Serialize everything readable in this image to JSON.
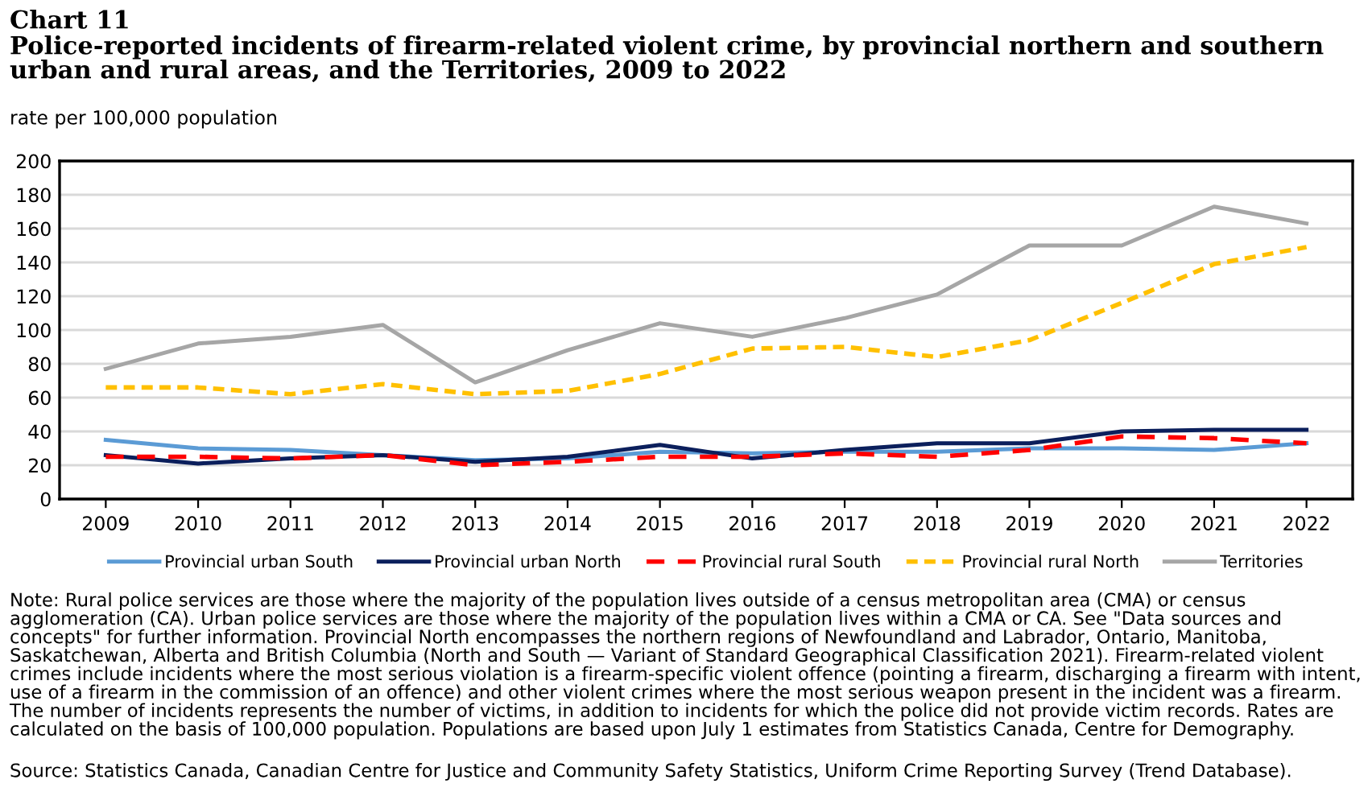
{
  "chart_data": {
    "type": "line",
    "title": "Chart 11",
    "subtitle": "Police-reported incidents of firearm-related violent crime, by provincial northern and southern urban and rural areas, and the Territories, 2009 to 2022",
    "ylabel": "rate per 100,000 population",
    "categories": [
      "2009",
      "2010",
      "2011",
      "2012",
      "2013",
      "2014",
      "2015",
      "2016",
      "2017",
      "2018",
      "2019",
      "2020",
      "2021",
      "2022"
    ],
    "series": [
      {
        "name": "Provincial urban South",
        "color": "#5b9bd5",
        "line_style": "solid",
        "values": [
          35,
          30,
          29,
          26,
          23,
          24,
          28,
          27,
          28,
          28,
          30,
          30,
          29,
          33
        ]
      },
      {
        "name": "Provincial urban North",
        "color": "#0b1f5c",
        "line_style": "solid",
        "values": [
          26,
          21,
          24,
          26,
          22,
          25,
          32,
          24,
          29,
          33,
          33,
          40,
          41,
          41
        ]
      },
      {
        "name": "Provincial rural South",
        "color": "#ff0000",
        "line_style": "dashed",
        "values": [
          25,
          25,
          24,
          26,
          20,
          22,
          25,
          25,
          27,
          25,
          29,
          37,
          36,
          33
        ]
      },
      {
        "name": "Provincial rural North",
        "color": "#ffc000",
        "line_style": "dotted",
        "values": [
          66,
          66,
          62,
          68,
          62,
          64,
          74,
          89,
          90,
          84,
          94,
          116,
          139,
          149
        ]
      },
      {
        "name": "Territories",
        "color": "#a6a6a6",
        "line_style": "solid",
        "values": [
          77,
          92,
          96,
          103,
          69,
          88,
          104,
          96,
          107,
          121,
          150,
          150,
          173,
          163
        ]
      }
    ],
    "ylim": [
      0,
      200
    ],
    "yticks": [
      0,
      20,
      40,
      60,
      80,
      100,
      120,
      140,
      160,
      180,
      200
    ],
    "grid": "y",
    "legend": "bottom",
    "marker": "none",
    "annotations": [
      "Note: Rural police services are those where the majority of the population lives outside of a census metropolitan area (CMA) or census agglomeration (CA). Urban police services are those where the majority of the population lives within a CMA or CA. See \"Data sources and concepts\" for further information. Provincial North encompasses the northern regions of Newfoundland and Labrador, Ontario, Manitoba, Saskatchewan, Alberta and British Columbia (North and South — Variant of Standard Geographical Classification 2021). Firearm-related violent crimes include incidents where the most serious violation is a firearm-specific violent offence (pointing a firearm, discharging a firearm with intent, use of a firearm in the commission of an offence) and other violent crimes where the most serious weapon present in the incident was a firearm. The number of incidents represents the number of victims, in addition to incidents for which the police did not provide victim records. Rates are calculated on the basis of 100,000 population. Populations are based upon July 1 estimates from Statistics Canada, Centre for Demography.",
      "Source: Statistics Canada, Canadian Centre for Justice and Community Safety Statistics, Uniform Crime Reporting Survey (Trend Database)."
    ]
  }
}
